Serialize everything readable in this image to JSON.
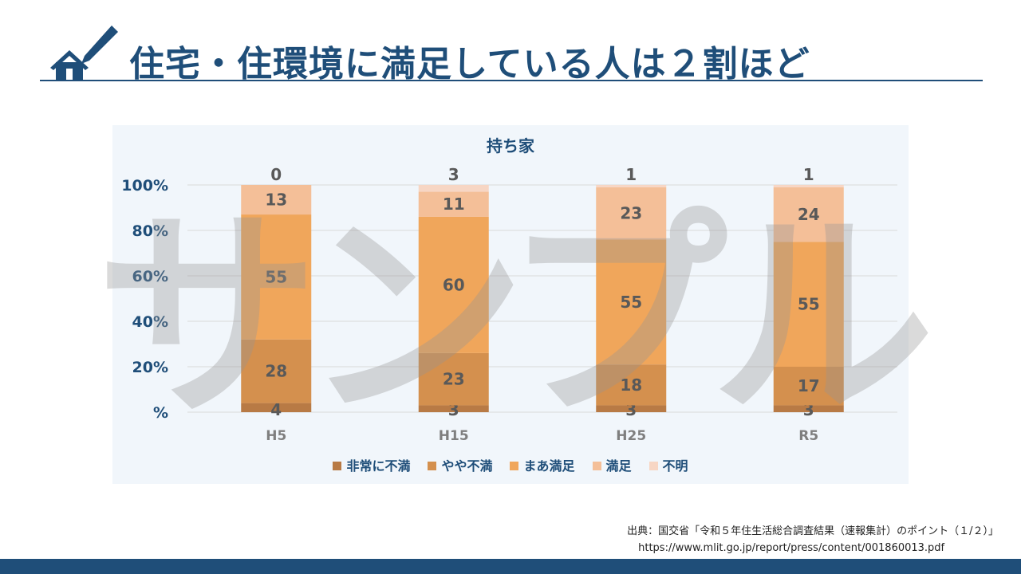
{
  "header": {
    "title": "住宅・住環境に満足している人は２割ほど"
  },
  "watermark": "サンプル",
  "chart_data": {
    "type": "bar",
    "stacked": true,
    "title": "持ち家",
    "categories": [
      "H5",
      "H15",
      "H25",
      "R5"
    ],
    "yticks": [
      "%",
      "20%",
      "40%",
      "60%",
      "80%",
      "100%"
    ],
    "ylim": [
      0,
      100
    ],
    "series": [
      {
        "name": "非常に不満",
        "color": "#b87a45",
        "values": [
          4,
          3,
          3,
          3
        ]
      },
      {
        "name": "やや不満",
        "color": "#d4904e",
        "values": [
          28,
          23,
          18,
          17
        ]
      },
      {
        "name": "まあ満足",
        "color": "#f0a65b",
        "values": [
          55,
          60,
          55,
          55
        ]
      },
      {
        "name": "満足",
        "color": "#f4bf98",
        "values": [
          13,
          11,
          23,
          24
        ]
      },
      {
        "name": "不明",
        "color": "#f7d6c4",
        "values": [
          0,
          3,
          1,
          1
        ]
      }
    ],
    "legend": "bottom"
  },
  "source": {
    "line1": "出典：国交省「令和５年住生活総合調査結果（速報集計）のポイント（１/２）」",
    "line2": "https://www.mlit.go.jp/report/press/content/001860013.pdf"
  }
}
